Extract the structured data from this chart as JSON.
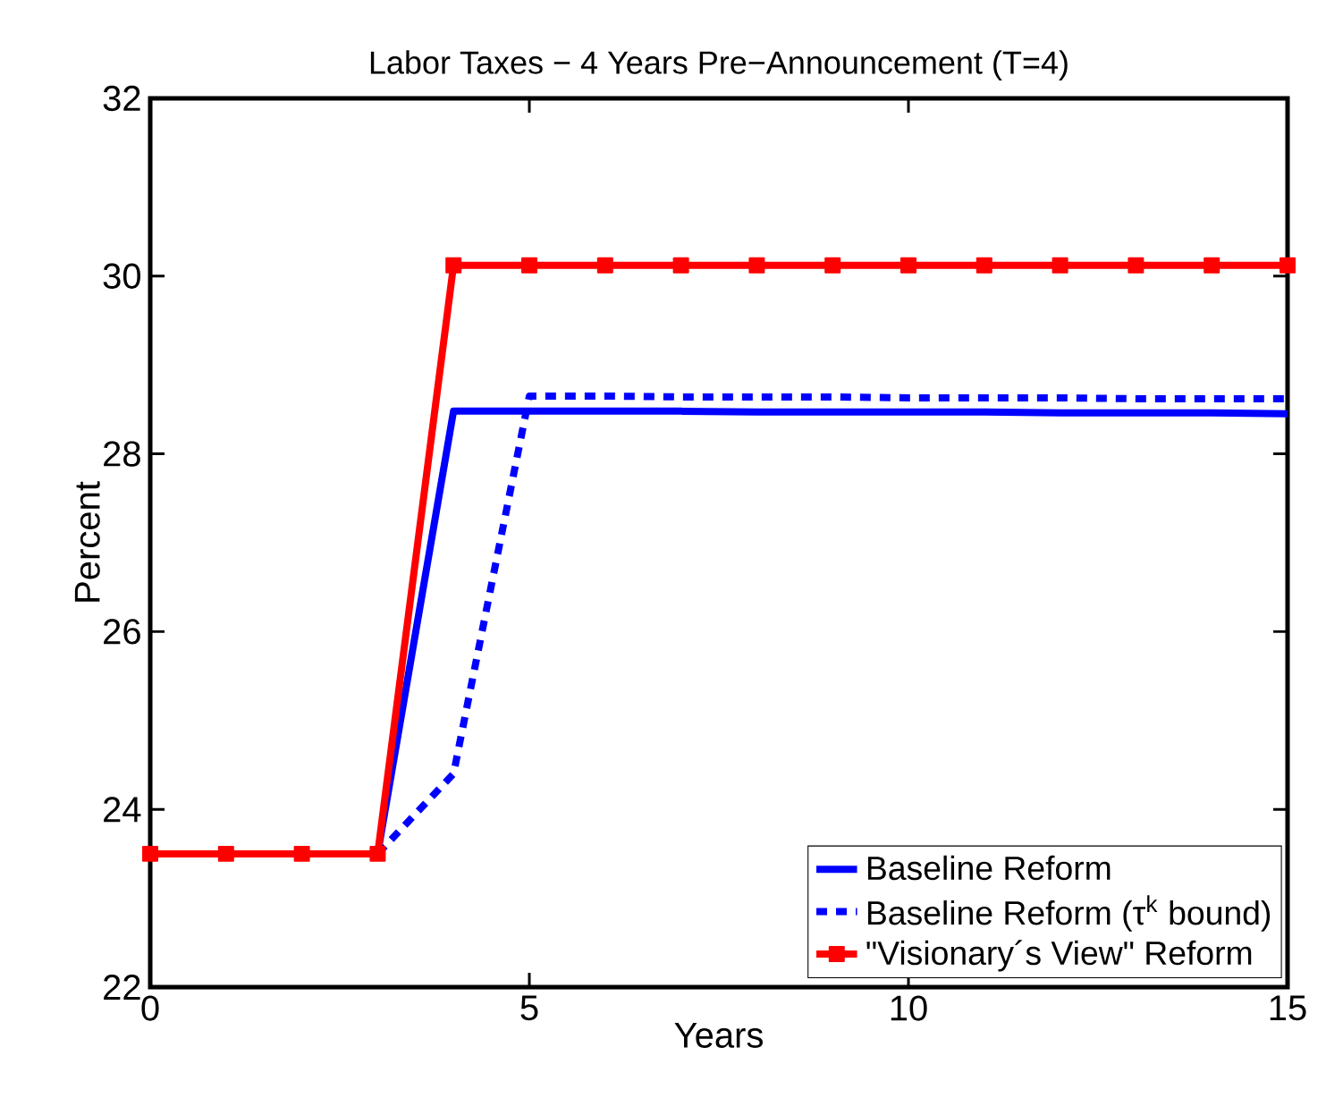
{
  "chart_data": {
    "type": "line",
    "title": "Labor Taxes − 4 Years Pre−Announcement (T=4)",
    "xlabel": "Years",
    "ylabel": "Percent",
    "x": [
      0,
      1,
      2,
      3,
      4,
      5,
      6,
      7,
      8,
      9,
      10,
      11,
      12,
      13,
      14,
      15
    ],
    "series": [
      {
        "name": "Baseline Reform",
        "color": "#0000ff",
        "line_style": "solid",
        "marker": "none",
        "values": [
          null,
          null,
          null,
          23.5,
          28.48,
          28.48,
          28.48,
          28.48,
          28.47,
          28.47,
          28.47,
          28.47,
          28.46,
          28.46,
          28.46,
          28.45
        ]
      },
      {
        "name": "Baseline Reform (τ$^{k}$ bound)",
        "color": "#0000ff",
        "line_style": "dotted",
        "marker": "none",
        "values": [
          null,
          null,
          null,
          23.5,
          24.4,
          28.65,
          28.65,
          28.64,
          28.64,
          28.64,
          28.63,
          28.63,
          28.63,
          28.62,
          28.62,
          28.62
        ]
      },
      {
        "name": "\"Visionary´s View\" Reform",
        "color": "#ff0000",
        "line_style": "solid",
        "marker": "square",
        "values": [
          23.5,
          23.5,
          23.5,
          23.5,
          30.12,
          30.12,
          30.12,
          30.12,
          30.12,
          30.12,
          30.12,
          30.12,
          30.12,
          30.12,
          30.12,
          30.12
        ]
      }
    ],
    "xlim": [
      0,
      15
    ],
    "ylim": [
      22,
      32
    ],
    "xticks": [
      0,
      5,
      10,
      15
    ],
    "yticks": [
      22,
      24,
      26,
      28,
      30,
      32
    ],
    "grid": false,
    "legend": "bottom right"
  }
}
